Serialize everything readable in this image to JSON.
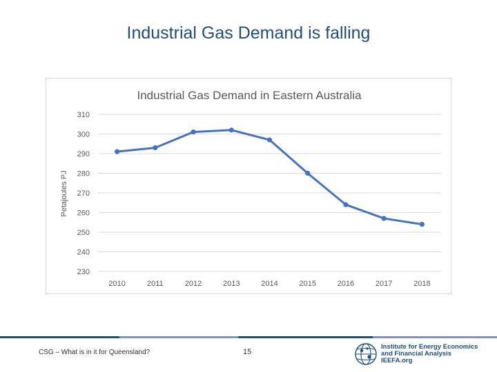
{
  "slide": {
    "title": "Industrial Gas Demand is falling",
    "footer_text": "CSG – What is in it for Queensland?",
    "page_number": "15"
  },
  "logo": {
    "lines": [
      "Institute for Energy Economics",
      "and Financial Analysis",
      "IEEFA.org"
    ],
    "icon": "globe-icon",
    "color": "#1f4e79"
  },
  "chart_data": {
    "type": "line",
    "title": "Industrial Gas Demand in Eastern Australia",
    "xlabel": "",
    "ylabel": "Petajoules PJ",
    "categories": [
      "2010",
      "2011",
      "2012",
      "2013",
      "2014",
      "2015",
      "2016",
      "2017",
      "2018"
    ],
    "series": [
      {
        "values": [
          291,
          293,
          301,
          302,
          297,
          280,
          264,
          257,
          254
        ],
        "color": "#4472c4"
      }
    ],
    "ylim": [
      230,
      310
    ],
    "yticks": [
      "230",
      "240",
      "250",
      "260",
      "270",
      "280",
      "290",
      "300",
      "310"
    ],
    "grid": true,
    "legend": "none"
  }
}
